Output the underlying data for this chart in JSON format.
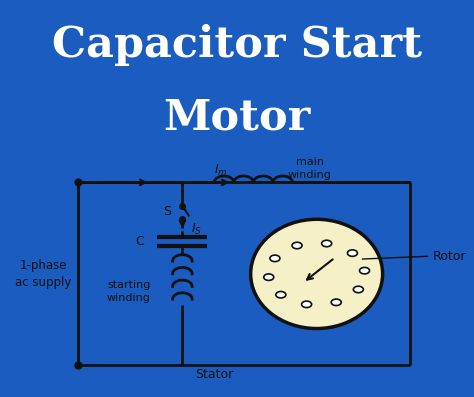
{
  "title_line1": "Capacitor Start",
  "title_line2": "Motor",
  "title_bg_color": "#1a5cbf",
  "title_text_color": "#ffffff",
  "diagram_bg_color": "#efefef",
  "border_color": "#1a5cbf",
  "diagram_line_color": "#111111",
  "label_1phase": "1-phase\nac supply",
  "label_main_winding": "main\nwinding",
  "label_starting_winding": "starting\nwinding",
  "label_stator": "Stator",
  "label_rotor": "Rotor",
  "label_S": "S",
  "label_C": "C"
}
